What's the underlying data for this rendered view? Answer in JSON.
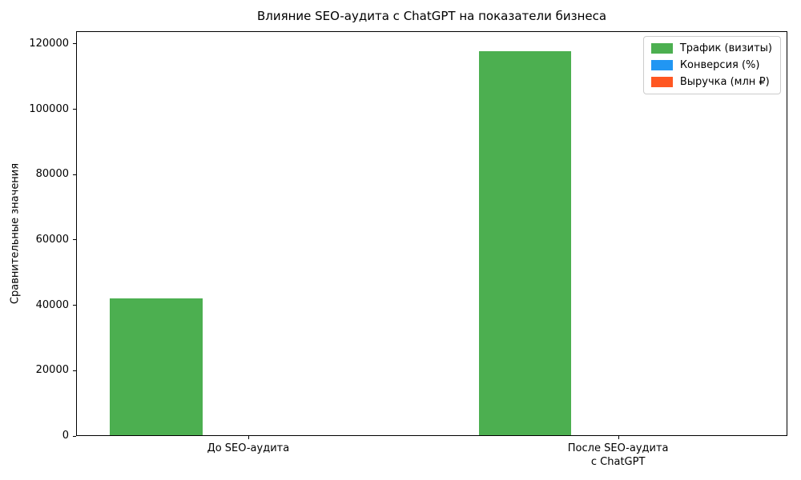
{
  "chart_data": {
    "type": "bar",
    "title": "Влияние SEO-аудита с ChatGPT на показатели бизнеса",
    "xlabel": "",
    "ylabel": "Сравнительные значения",
    "categories": [
      "До SEO-аудита",
      "После SEO-аудита\nс ChatGPT"
    ],
    "series": [
      {
        "name": "Трафик (визиты)",
        "color": "#4caf50",
        "values": [
          42000,
          118000
        ]
      },
      {
        "name": "Конверсия (%)",
        "color": "#2196f3",
        "values": [
          0,
          0
        ]
      },
      {
        "name": "Выручка (млн ₽)",
        "color": "#ff5722",
        "values": [
          0,
          0
        ]
      }
    ],
    "yticks": [
      0,
      20000,
      40000,
      60000,
      80000,
      100000,
      120000
    ],
    "ylim": [
      0,
      123900
    ],
    "grid": false,
    "legend_position": "upper right",
    "background_color": "#ffffff",
    "axis_color": "#000000"
  }
}
